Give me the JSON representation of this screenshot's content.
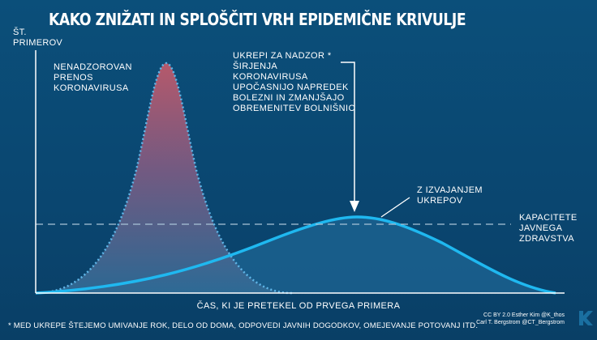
{
  "title": "KAKO ZNIŽATI IN SPLOŠČITI VRH EPIDEMIČNE KRIVULJE",
  "y_axis_label": [
    "ŠT.",
    "PRIMEROV"
  ],
  "x_axis_label": "ČAS, KI JE PRETEKEL OD PRVEGA PRIMERA",
  "annotations": {
    "unmitigated": [
      "NENADZOROVAN",
      "PRENOS",
      "KORONAVIRUSA"
    ],
    "measures": [
      "UKREPI ZA NADZOR *",
      "ŠIRJENJA",
      "KORONAVIRUSA",
      "UPOČASNIJO NAPREDEK",
      "BOLEZNI IN ZMANJŠAJO",
      "OBREMENITEV BOLNIŠNIC"
    ],
    "with_measures": [
      "Z IZVAJANJEM",
      "UKREPOV"
    ],
    "capacity": [
      "KAPACITETE",
      "JAVNEGA",
      "ZDRAVSTVA"
    ]
  },
  "footnote": "* MED UKREPE ŠTEJEMO UMIVANJE ROK, DELO OD DOMA, ODPOVEDI JAVNIH DOGODKOV, OMEJEVANJE POTOVANJ ITD.",
  "credits": [
    "CC BY 2.0  Esther Kim  @K_thos",
    "Carl T. Bergstrom  @CT_Bergstrom"
  ],
  "colors": {
    "background": "#0a4670",
    "peak_fill_top": "#c45a6a",
    "peak_outline": "#5fb6e8",
    "flat_curve": "#1fb8f0",
    "capacity_line": "#a9c4d8",
    "text": "#ffffff"
  }
}
